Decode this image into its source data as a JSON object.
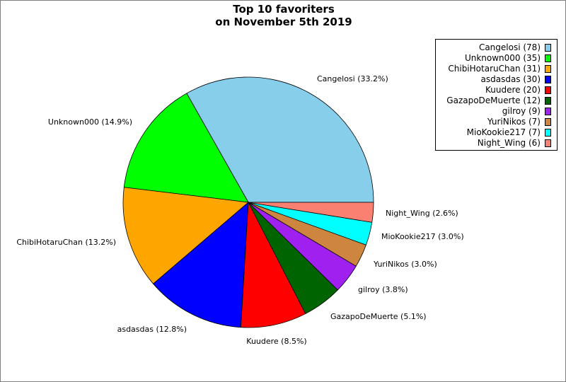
{
  "chart_data": {
    "type": "pie",
    "title": "Top 10 favoriters",
    "subtitle": "on November 5th 2019",
    "legend_position": "top-right",
    "slices": [
      {
        "label": "Cangelosi",
        "value": 78,
        "percent_label": "Cangelosi (33.2%)",
        "legend_label": "Cangelosi (78)",
        "color": "#87ceeb"
      },
      {
        "label": "Unknown000",
        "value": 35,
        "percent_label": "Unknown000 (14.9%)",
        "legend_label": "Unknown000 (35)",
        "color": "#00ff00"
      },
      {
        "label": "ChibiHotaruChan",
        "value": 31,
        "percent_label": "ChibiHotaruChan (13.2%)",
        "legend_label": "ChibiHotaruChan (31)",
        "color": "#ffa500"
      },
      {
        "label": "asdasdas",
        "value": 30,
        "percent_label": "asdasdas (12.8%)",
        "legend_label": "asdasdas (30)",
        "color": "#0000ff"
      },
      {
        "label": "Kuudere",
        "value": 20,
        "percent_label": "Kuudere (8.5%)",
        "legend_label": "Kuudere (20)",
        "color": "#ff0000"
      },
      {
        "label": "GazapoDeMuerte",
        "value": 12,
        "percent_label": "GazapoDeMuerte (5.1%)",
        "legend_label": "GazapoDeMuerte (12)",
        "color": "#006400"
      },
      {
        "label": "gilroy",
        "value": 9,
        "percent_label": "gilroy (3.8%)",
        "legend_label": "gilroy (9)",
        "color": "#a020f0"
      },
      {
        "label": "YuriNikos",
        "value": 7,
        "percent_label": "YuriNikos (3.0%)",
        "legend_label": "YuriNikos (7)",
        "color": "#cd853f"
      },
      {
        "label": "MioKookie217",
        "value": 7,
        "percent_label": "MioKookie217 (3.0%)",
        "legend_label": "MioKookie217 (7)",
        "color": "#00ffff"
      },
      {
        "label": "Night_Wing",
        "value": 6,
        "percent_label": "Night_Wing (2.6%)",
        "legend_label": "Night_Wing (6)",
        "color": "#fa8072"
      }
    ]
  }
}
